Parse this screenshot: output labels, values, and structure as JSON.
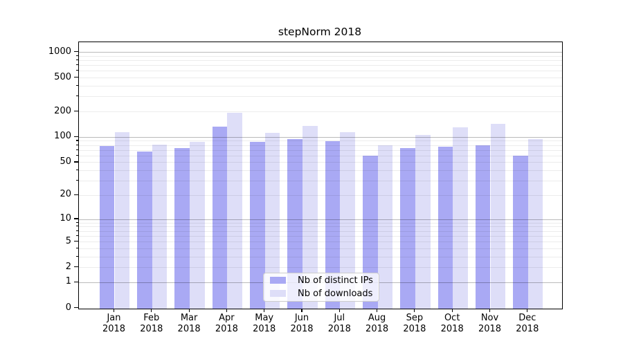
{
  "chart_data": {
    "type": "bar",
    "title": "stepNorm 2018",
    "categories": [
      "Jan 2018",
      "Feb 2018",
      "Mar 2018",
      "Apr 2018",
      "May 2018",
      "Jun 2018",
      "Jul 2018",
      "Aug 2018",
      "Sep 2018",
      "Oct 2018",
      "Nov 2018",
      "Dec 2018"
    ],
    "x_tick_line1": [
      "Jan",
      "Feb",
      "Mar",
      "Apr",
      "May",
      "Jun",
      "Jul",
      "Aug",
      "Sep",
      "Oct",
      "Nov",
      "Dec"
    ],
    "x_tick_line2": "2018",
    "series": [
      {
        "name": "Nb of distinct IPs",
        "color": "#a9a9f4",
        "values": [
          79,
          68,
          74,
          134,
          88,
          95,
          90,
          61,
          75,
          78,
          80,
          60
        ]
      },
      {
        "name": "Nb of downloads",
        "color": "#dedef8",
        "values": [
          115,
          82,
          89,
          194,
          112,
          136,
          114,
          80,
          107,
          130,
          144,
          96
        ]
      }
    ],
    "yscale": "log1p",
    "y_ticks": [
      0,
      1,
      2,
      5,
      10,
      20,
      50,
      100,
      200,
      500,
      1000
    ],
    "y_major_gridlines": [
      1,
      10,
      100,
      1000
    ],
    "ylim": [
      0,
      1310
    ],
    "xlabel": "",
    "ylabel": "",
    "grid": {
      "horizontal_major": true,
      "horizontal_minor": true,
      "vertical": false
    },
    "legend_position": "lower-center-inside"
  },
  "colors": {
    "grid_major": "#bcbcbc",
    "grid_minor": "#ededed",
    "axis": "#000000",
    "background": "#ffffff",
    "text": "#000000"
  }
}
